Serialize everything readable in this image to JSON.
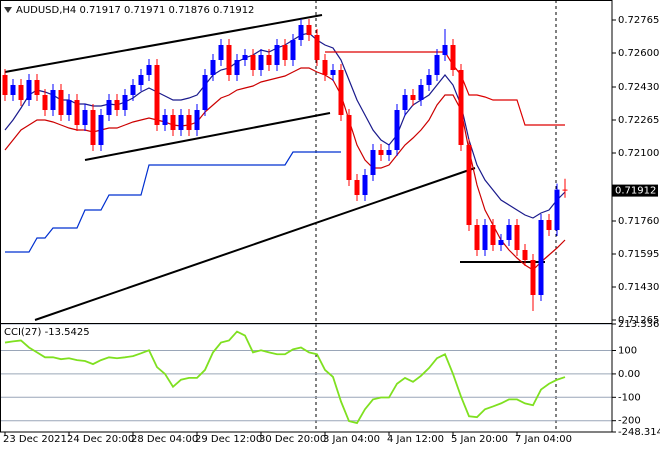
{
  "chart_data": [
    {
      "type": "candlestick",
      "title": "AUDUSD,H4  0.71917 0.71971 0.71876 0.71912",
      "categories": [
        "23 Dec 2021",
        null,
        null,
        null,
        null,
        null,
        null,
        null,
        "24 Dec 20:00",
        null,
        null,
        null,
        null,
        null,
        null,
        null,
        "28 Dec 04:00",
        null,
        null,
        null,
        null,
        null,
        null,
        null,
        "29 Dec 12:00",
        null,
        null,
        null,
        null,
        null,
        null,
        null,
        "30 Dec 20:00",
        null,
        null,
        null,
        null,
        null,
        null,
        null,
        "3 Jan 04:00",
        null,
        null,
        null,
        null,
        null,
        null,
        null,
        "4 Jan 12:00",
        null,
        null,
        null,
        null,
        null,
        null,
        null,
        "5 Jan 20:00",
        null,
        null,
        null,
        null,
        null,
        null,
        null,
        "7 Jan 04:00",
        null,
        null,
        null,
        null,
        null,
        null
      ],
      "open": [
        0.7249,
        0.7239,
        0.7244,
        0.72365,
        0.72465,
        0.7239,
        0.72315,
        0.72415,
        0.7229,
        0.72365,
        0.7224,
        0.72315,
        0.7214,
        0.7229,
        0.72365,
        0.72315,
        0.7239,
        0.7244,
        0.7249,
        0.7254,
        0.7224,
        0.7229,
        0.72215,
        0.7229,
        0.72215,
        0.72315,
        0.7249,
        0.72565,
        0.7264,
        0.7249,
        0.72565,
        0.7259,
        0.72515,
        0.7259,
        0.7254,
        0.7264,
        0.72565,
        0.72665,
        0.7274,
        0.7269,
        0.72565,
        0.7249,
        0.72515,
        0.7229,
        0.71965,
        0.7189,
        0.7199,
        0.72115,
        0.7209,
        0.72115,
        0.72315,
        0.7239,
        0.72365,
        0.7244,
        0.7249,
        0.7259,
        0.7264,
        0.72515,
        0.7214,
        0.7174,
        0.71615,
        0.7174,
        0.7164,
        0.71665,
        0.7174,
        0.71615,
        0.71565,
        0.7139,
        0.71765,
        0.71715,
        0.71917
      ],
      "high": [
        0.7252,
        0.7247,
        0.7247,
        0.72495,
        0.72495,
        0.7242,
        0.72445,
        0.72445,
        0.72395,
        0.72395,
        0.72345,
        0.72345,
        0.7232,
        0.72395,
        0.72395,
        0.7242,
        0.7247,
        0.7252,
        0.7257,
        0.7257,
        0.7232,
        0.7232,
        0.7232,
        0.7232,
        0.72345,
        0.7252,
        0.72595,
        0.7267,
        0.7267,
        0.72595,
        0.7262,
        0.7262,
        0.7262,
        0.7262,
        0.7267,
        0.7267,
        0.72695,
        0.7277,
        0.7277,
        0.7272,
        0.72595,
        0.72545,
        0.72545,
        0.7232,
        0.71995,
        0.7202,
        0.72145,
        0.72145,
        0.72145,
        0.72345,
        0.7242,
        0.7242,
        0.7247,
        0.7252,
        0.7262,
        0.7272,
        0.7267,
        0.72545,
        0.7217,
        0.7177,
        0.7177,
        0.7177,
        0.71695,
        0.7177,
        0.7177,
        0.71645,
        0.71595,
        0.71795,
        0.71795,
        0.71947,
        0.71971
      ],
      "low": [
        0.7236,
        0.7236,
        0.72335,
        0.72335,
        0.7236,
        0.72285,
        0.72285,
        0.7226,
        0.7226,
        0.7221,
        0.7221,
        0.7211,
        0.7211,
        0.7226,
        0.72285,
        0.72285,
        0.7236,
        0.7241,
        0.7246,
        0.7221,
        0.7221,
        0.72185,
        0.72185,
        0.72185,
        0.72185,
        0.72285,
        0.7246,
        0.72535,
        0.7246,
        0.7246,
        0.72535,
        0.72485,
        0.72485,
        0.7251,
        0.7251,
        0.72535,
        0.72535,
        0.72635,
        0.7266,
        0.72535,
        0.7246,
        0.7246,
        0.7226,
        0.71935,
        0.7186,
        0.7186,
        0.7196,
        0.7206,
        0.7206,
        0.72085,
        0.72285,
        0.72335,
        0.72335,
        0.7241,
        0.7246,
        0.7256,
        0.72485,
        0.7211,
        0.7171,
        0.71585,
        0.71585,
        0.7161,
        0.7161,
        0.71635,
        0.71585,
        0.71535,
        0.7131,
        0.7136,
        0.71685,
        0.71685,
        0.71876
      ],
      "close": [
        0.7239,
        0.7244,
        0.72365,
        0.72465,
        0.7239,
        0.72315,
        0.72415,
        0.7229,
        0.72365,
        0.7224,
        0.72315,
        0.7214,
        0.7229,
        0.72365,
        0.72315,
        0.7239,
        0.7244,
        0.7249,
        0.7254,
        0.7224,
        0.7229,
        0.72215,
        0.7229,
        0.72215,
        0.72315,
        0.7249,
        0.72565,
        0.7264,
        0.7249,
        0.72565,
        0.7259,
        0.72515,
        0.7259,
        0.7254,
        0.7264,
        0.72565,
        0.72665,
        0.7274,
        0.7269,
        0.72565,
        0.7249,
        0.72515,
        0.7229,
        0.71965,
        0.7189,
        0.7199,
        0.72115,
        0.7209,
        0.72115,
        0.72315,
        0.7239,
        0.72365,
        0.7244,
        0.7249,
        0.7259,
        0.7264,
        0.72515,
        0.7214,
        0.7174,
        0.71615,
        0.7174,
        0.7164,
        0.71665,
        0.7174,
        0.71615,
        0.71565,
        0.7139,
        0.71765,
        0.71715,
        0.71917,
        0.71912
      ],
      "up_color": "#0000ff",
      "down_color": "#ff0000",
      "lines": [
        {
          "color": "#1a1a8c",
          "values": [
            0.72215,
            0.72265,
            0.72325,
            0.7239,
            0.72415,
            0.72405,
            0.7239,
            0.72365,
            0.72365,
            0.72345,
            0.72345,
            0.72335,
            0.72335,
            0.72345,
            0.7234,
            0.72355,
            0.72375,
            0.72405,
            0.72425,
            0.72405,
            0.72385,
            0.72365,
            0.72365,
            0.72375,
            0.7239,
            0.7244,
            0.7249,
            0.72515,
            0.72525,
            0.72555,
            0.72575,
            0.7259,
            0.72615,
            0.72605,
            0.72625,
            0.7264,
            0.72665,
            0.7269,
            0.727,
            0.72665,
            0.7264,
            0.72625,
            0.72565,
            0.72465,
            0.72365,
            0.7229,
            0.72215,
            0.72165,
            0.7214,
            0.7219,
            0.7229,
            0.7234,
            0.72365,
            0.7239,
            0.7244,
            0.7249,
            0.7244,
            0.7234,
            0.72165,
            0.7204,
            0.71965,
            0.71915,
            0.71865,
            0.7184,
            0.71815,
            0.7179,
            0.71775,
            0.718,
            0.71815,
            0.71865,
            0.71905
          ]
        },
        {
          "color": "#cc0000",
          "values": [
            0.72115,
            0.72165,
            0.72215,
            0.7224,
            0.72265,
            0.72265,
            0.72255,
            0.7224,
            0.72225,
            0.72215,
            0.72215,
            0.72205,
            0.72215,
            0.72225,
            0.72225,
            0.7224,
            0.72255,
            0.72265,
            0.72275,
            0.72265,
            0.72255,
            0.7224,
            0.72235,
            0.7224,
            0.72255,
            0.72305,
            0.7234,
            0.72375,
            0.7239,
            0.72415,
            0.72425,
            0.72435,
            0.72455,
            0.72465,
            0.72475,
            0.72485,
            0.72505,
            0.72525,
            0.72525,
            0.72505,
            0.7249,
            0.72465,
            0.7239,
            0.72265,
            0.7214,
            0.72065,
            0.72025,
            0.72025,
            0.7204,
            0.7209,
            0.7214,
            0.72175,
            0.72215,
            0.72265,
            0.7234,
            0.7239,
            0.7239,
            0.72315,
            0.72115,
            0.7194,
            0.71815,
            0.7174,
            0.71665,
            0.71615,
            0.71575,
            0.7154,
            0.71515,
            0.71555,
            0.7159,
            0.71625,
            0.71665
          ]
        },
        {
          "color": "#0030d0",
          "values": [
            0.71605,
            0.71605,
            0.71605,
            0.71605,
            0.71675,
            0.71675,
            0.71725,
            0.71725,
            0.71725,
            0.71725,
            0.71815,
            0.71815,
            0.71815,
            0.7189,
            0.7189,
            0.7189,
            0.7189,
            0.7189,
            0.7204,
            0.7204,
            0.7204,
            0.7204,
            0.7204,
            0.7204,
            0.7204,
            0.7204,
            0.7204,
            0.7204,
            0.7204,
            0.7204,
            0.7204,
            0.7204,
            0.7204,
            0.7204,
            0.7204,
            0.7204,
            0.72105,
            0.72105,
            0.72105,
            0.72105,
            0.72105,
            0.72105,
            0.72105,
            null,
            null,
            null,
            null,
            null,
            null,
            null,
            null,
            null,
            null,
            null,
            null,
            null,
            null,
            null,
            null,
            null,
            null,
            null,
            null,
            null,
            null,
            null,
            null,
            null,
            null,
            null,
            null
          ]
        },
        {
          "color": "#dd0000",
          "values": [
            null,
            null,
            null,
            null,
            null,
            null,
            null,
            null,
            null,
            null,
            null,
            null,
            null,
            null,
            null,
            null,
            null,
            null,
            null,
            null,
            null,
            null,
            null,
            null,
            null,
            null,
            null,
            null,
            null,
            null,
            null,
            null,
            null,
            null,
            null,
            null,
            null,
            null,
            null,
            null,
            0.72605,
            0.72605,
            0.72605,
            0.72605,
            0.72605,
            0.72605,
            0.72605,
            0.72605,
            0.72605,
            0.72605,
            0.72605,
            0.72605,
            0.72605,
            0.72605,
            0.72605,
            0.72605,
            0.7254,
            0.7249,
            0.7239,
            0.7239,
            0.7238,
            0.72365,
            0.72365,
            0.72365,
            0.72365,
            0.7224,
            0.7224,
            0.7224,
            0.7224,
            0.7224,
            0.7224
          ]
        }
      ],
      "ylim": [
        0.7125,
        0.72865
      ],
      "yticks": [
        {
          "value": 0.72765,
          "label": "0.72765"
        },
        {
          "value": 0.726,
          "label": "0.72600"
        },
        {
          "value": 0.7243,
          "label": "0.72430"
        },
        {
          "value": 0.72265,
          "label": "0.72265"
        },
        {
          "value": 0.721,
          "label": "0.72100"
        },
        {
          "value": 0.7176,
          "label": "0.71760"
        },
        {
          "value": 0.71595,
          "label": "0.71595"
        },
        {
          "value": 0.7143,
          "label": "0.71430"
        },
        {
          "value": 0.71265,
          "label": "0.71265"
        }
      ]
    },
    {
      "type": "line",
      "title": "CCI(27) -13.5425",
      "color": "#7fe020",
      "values": [
        134,
        139,
        143,
        113,
        92,
        71,
        71,
        63,
        67,
        59,
        55,
        42,
        59,
        71,
        67,
        71,
        76,
        88,
        101,
        29,
        0,
        -55,
        -25,
        -17,
        -17,
        17,
        92,
        134,
        143,
        181,
        164,
        92,
        101,
        92,
        84,
        84,
        105,
        113,
        92,
        84,
        17,
        -13,
        -118,
        -202,
        -210,
        -151,
        -109,
        -101,
        -101,
        -42,
        -17,
        -34,
        -8,
        25,
        67,
        84,
        0,
        -97,
        -181,
        -185,
        -151,
        -139,
        -126,
        -109,
        -109,
        -126,
        -134,
        -67,
        -42,
        -25,
        -13.5425
      ],
      "ylim": [
        -248.3148,
        213.3368
      ],
      "yticks": [
        213.3368,
        100,
        {
          "value": 0,
          "label": "0.00"
        },
        -100,
        -200,
        -248.3148
      ]
    }
  ]
}
